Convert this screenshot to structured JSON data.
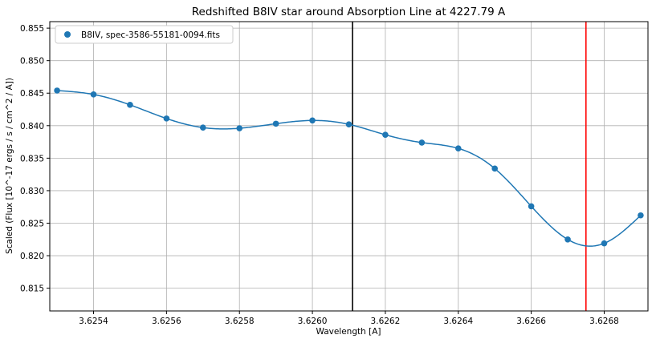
{
  "chart_data": {
    "type": "scatter",
    "title": "Redshifted B8IV star around Absorption Line at 4227.79 A",
    "xlabel": "Wavelength [A]",
    "ylabel": "Scaled (Flux [10^-17 ergs / s / cm^2 / A])",
    "xlim": [
      3.62528,
      3.62692
    ],
    "ylim": [
      0.8115,
      0.856
    ],
    "xticks": [
      3.6254,
      3.6256,
      3.6258,
      3.626,
      3.6262,
      3.6264,
      3.6266,
      3.6268
    ],
    "xtick_labels": [
      "3.6254",
      "3.6256",
      "3.6258",
      "3.6260",
      "3.6262",
      "3.6264",
      "3.6266",
      "3.6268"
    ],
    "yticks": [
      0.815,
      0.82,
      0.825,
      0.83,
      0.835,
      0.84,
      0.845,
      0.85,
      0.855
    ],
    "ytick_labels": [
      "0.815",
      "0.820",
      "0.825",
      "0.830",
      "0.835",
      "0.840",
      "0.845",
      "0.850",
      "0.855"
    ],
    "grid": true,
    "legend_position": "top-left",
    "series": [
      {
        "name": "B8IV, spec-3586-55181-0094.fits",
        "color": "#1f77b4",
        "x": [
          3.6253,
          3.6254,
          3.6255,
          3.6256,
          3.6257,
          3.6258,
          3.6259,
          3.626,
          3.6261,
          3.6262,
          3.6263,
          3.6264,
          3.6265,
          3.6266,
          3.6267,
          3.6268,
          3.6269
        ],
        "y": [
          0.8454,
          0.8448,
          0.8432,
          0.8411,
          0.8397,
          0.8396,
          0.8403,
          0.8408,
          0.8402,
          0.8386,
          0.8374,
          0.8365,
          0.8334,
          0.8276,
          0.8225,
          0.8219,
          0.8262
        ]
      }
    ],
    "vlines": [
      {
        "x": 3.62611,
        "color": "#000000"
      },
      {
        "x": 3.62675,
        "color": "#ff0000"
      }
    ]
  }
}
